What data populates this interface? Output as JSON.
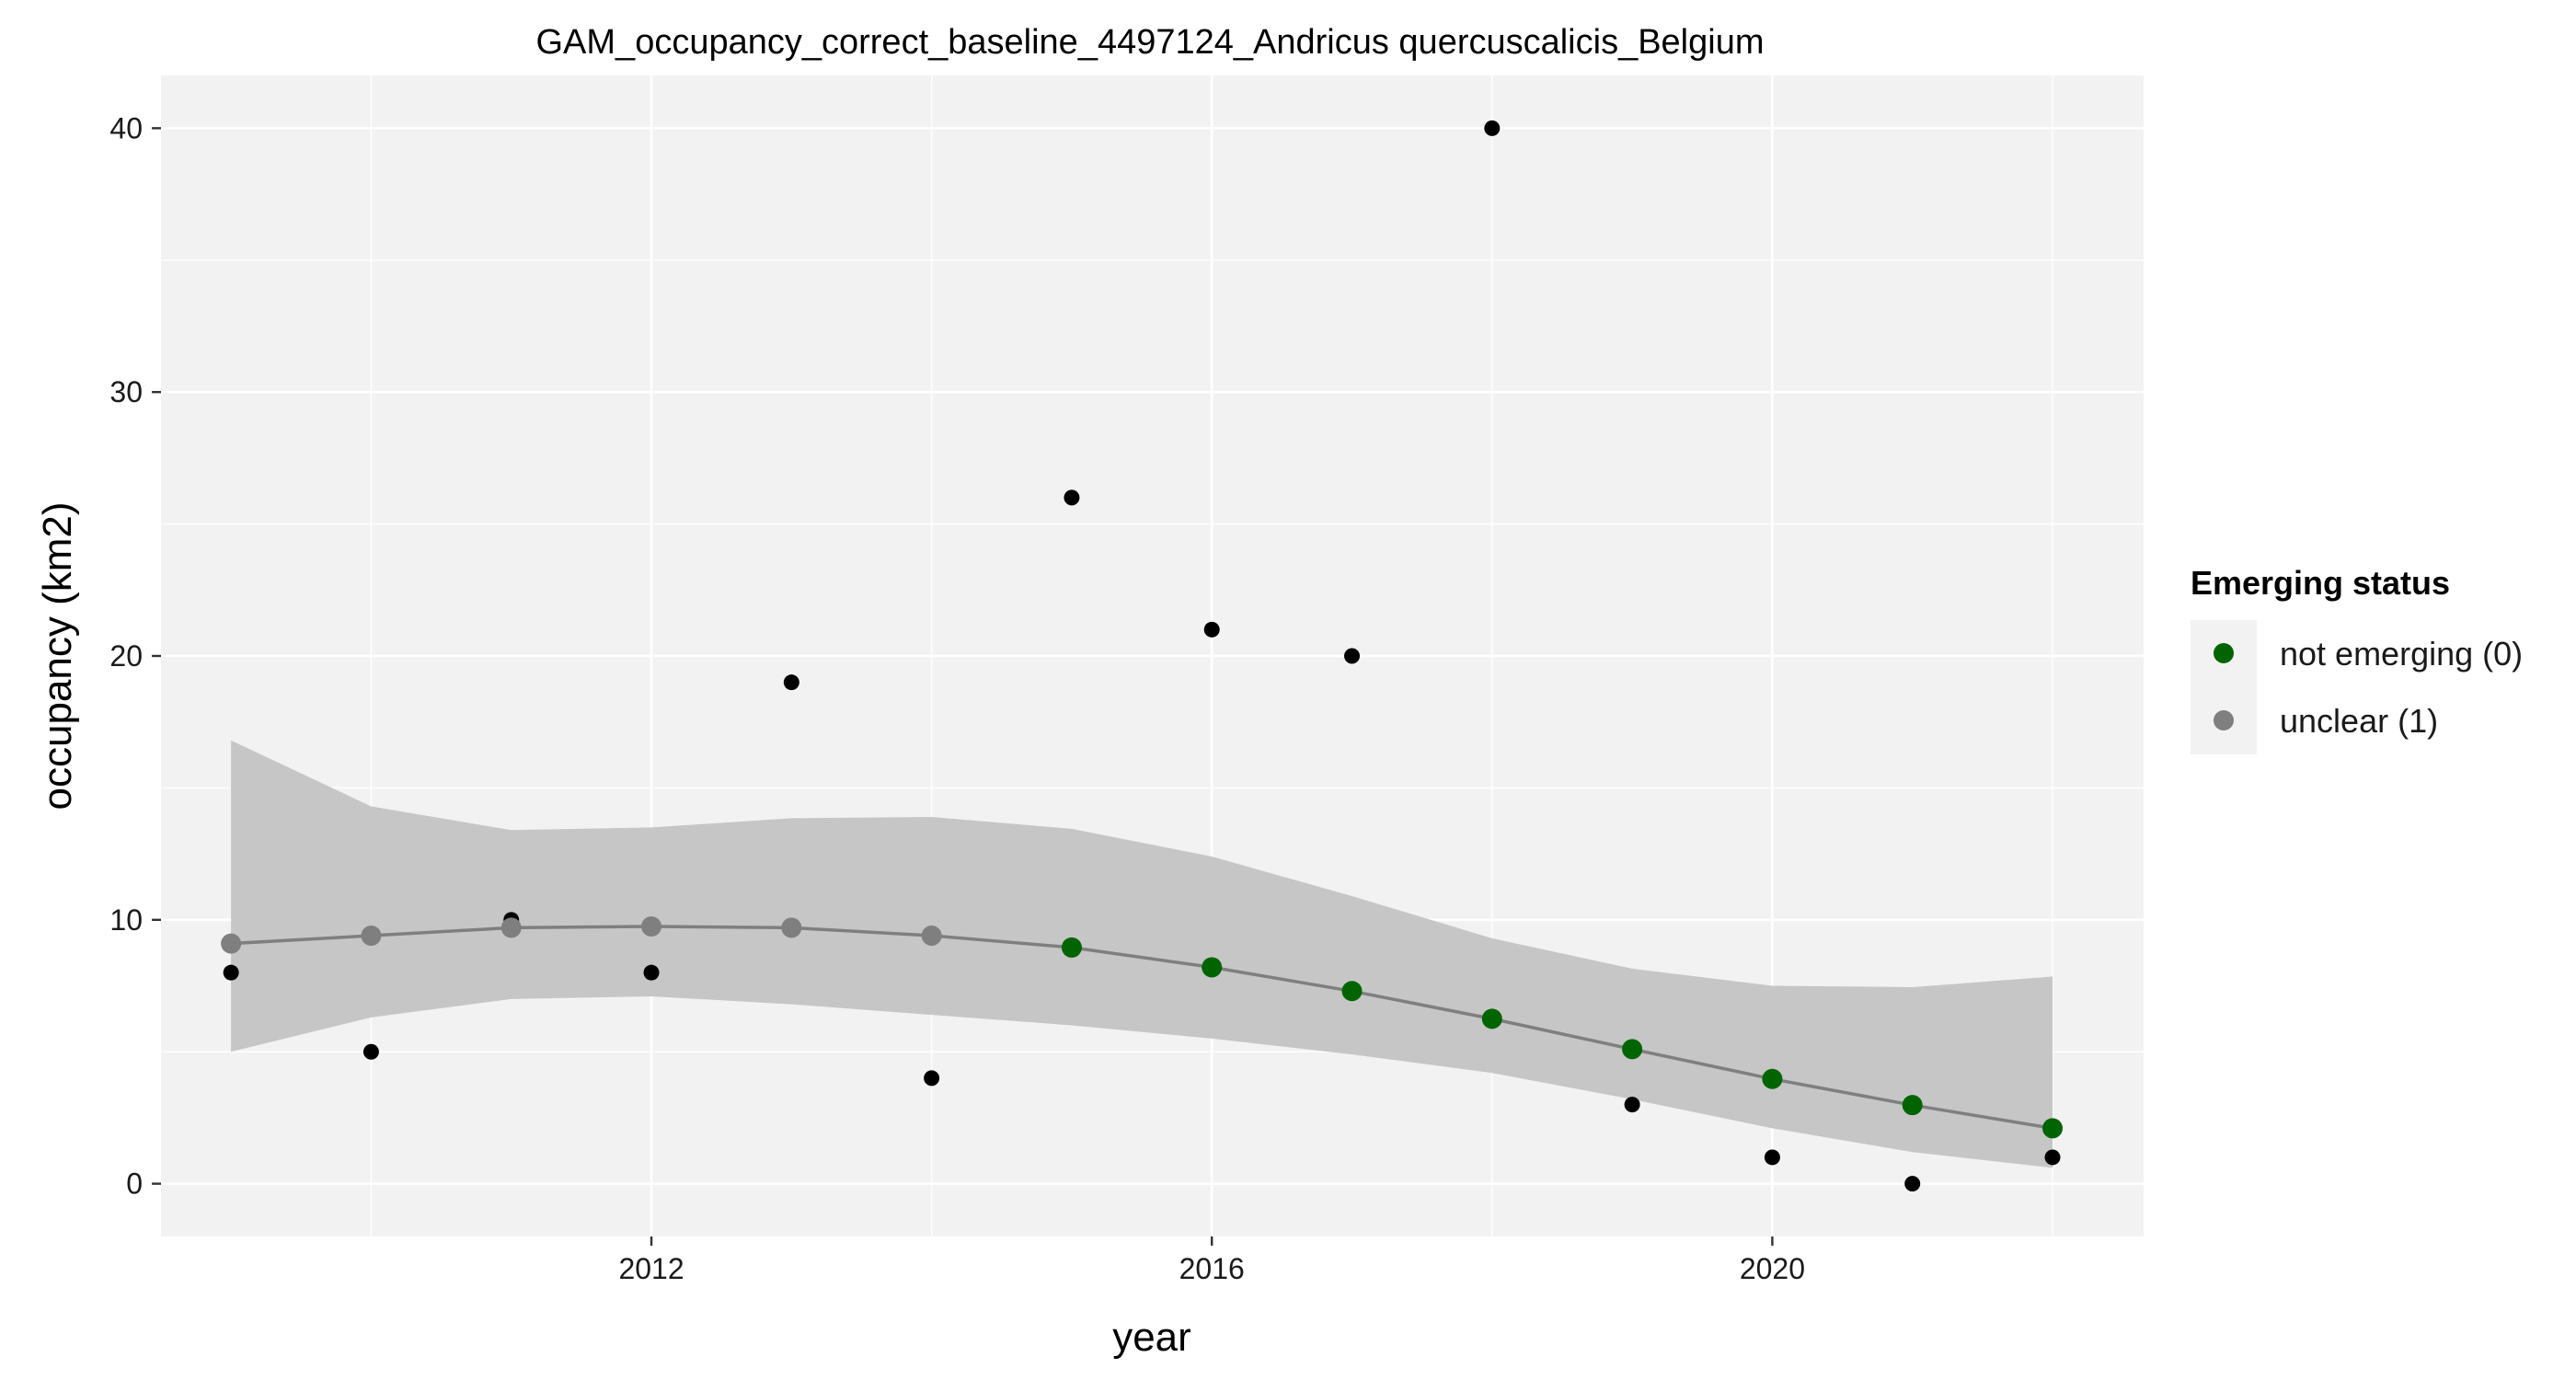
{
  "chart_data": {
    "type": "scatter",
    "title": "GAM_occupancy_correct_baseline_4497124_Andricus quercuscalicis_Belgium",
    "xlabel": "year",
    "ylabel": "occupancy (km2)",
    "xlim": [
      2008.5,
      2022.65
    ],
    "ylim": [
      -2.0,
      42.0
    ],
    "x_ticks": [
      2012,
      2016,
      2020
    ],
    "x_tick_labels": [
      "2012",
      "2016",
      "2020"
    ],
    "y_ticks": [
      0,
      10,
      20,
      30,
      40
    ],
    "y_tick_labels": [
      "0",
      "10",
      "20",
      "30",
      "40"
    ],
    "grid": true,
    "background": "#f2f2f2",
    "series": [
      {
        "kind": "points",
        "color": "#000000",
        "x": [
          2009,
          2010,
          2011,
          2012,
          2013,
          2014,
          2015,
          2016,
          2017,
          2018,
          2019,
          2020,
          2021,
          2022
        ],
        "values": [
          8,
          5,
          10,
          8,
          19,
          4,
          26,
          21,
          20,
          40,
          3,
          1,
          0,
          1
        ]
      },
      {
        "kind": "gam-fit",
        "line_color": "#7f7f7f",
        "ribbon_color": "#c6c6c6",
        "x": [
          2009,
          2010,
          2011,
          2012,
          2013,
          2014,
          2015,
          2016,
          2017,
          2018,
          2019,
          2020,
          2021,
          2022
        ],
        "values": [
          9.1,
          9.4,
          9.7,
          9.75,
          9.7,
          9.4,
          8.95,
          8.2,
          7.3,
          6.25,
          5.1,
          3.97,
          2.98,
          2.1
        ],
        "lower": [
          5.0,
          6.3,
          7.0,
          7.1,
          6.8,
          6.4,
          6.0,
          5.5,
          4.9,
          4.2,
          3.2,
          2.1,
          1.2,
          0.6
        ],
        "upper": [
          16.8,
          14.3,
          13.4,
          13.5,
          13.85,
          13.9,
          13.45,
          12.4,
          10.9,
          9.3,
          8.15,
          7.5,
          7.45,
          7.85
        ],
        "status": [
          "unclear (1)",
          "unclear (1)",
          "unclear (1)",
          "unclear (1)",
          "unclear (1)",
          "unclear (1)",
          "not emerging (0)",
          "not emerging (0)",
          "not emerging (0)",
          "not emerging (0)",
          "not emerging (0)",
          "not emerging (0)",
          "not emerging (0)",
          "not emerging (0)"
        ]
      }
    ],
    "legend": {
      "title": "Emerging status",
      "placement": "right",
      "items": [
        {
          "label": "not emerging (0)",
          "color": "#006400"
        },
        {
          "label": "unclear (1)",
          "color": "#7f7f7f"
        }
      ]
    }
  }
}
